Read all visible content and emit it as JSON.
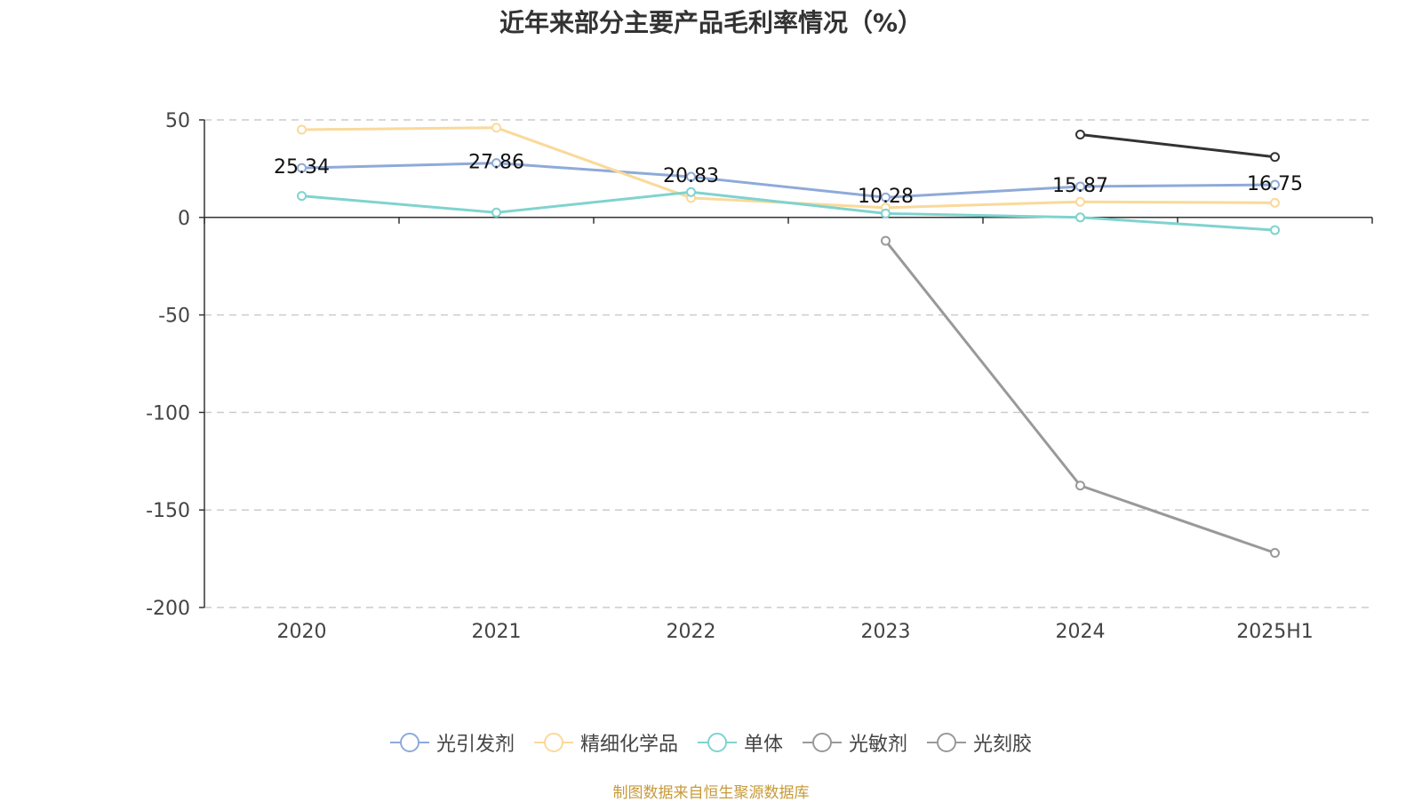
{
  "title": "近年来部分主要产品毛利率情况（%）",
  "source_text": "制图数据来自恒生聚源数据库",
  "chart_data": {
    "type": "line",
    "title": "近年来部分主要产品毛利率情况（%）",
    "categories": [
      "2020",
      "2021",
      "2022",
      "2023",
      "2024",
      "2025H1"
    ],
    "ylim": [
      -200,
      50
    ],
    "yticks": [
      50,
      0,
      -50,
      -100,
      -150,
      -200
    ],
    "grid": true,
    "legend_position": "bottom",
    "series": [
      {
        "name": "光引发剂",
        "color": "#8eaad9",
        "values": [
          25.34,
          27.86,
          20.83,
          10.28,
          15.87,
          16.75
        ],
        "show_labels": true
      },
      {
        "name": "精细化学品",
        "color": "#fad99a",
        "values": [
          45,
          46,
          10,
          5,
          8,
          7.5
        ],
        "show_labels": false
      },
      {
        "name": "单体",
        "color": "#7fd3cf",
        "values": [
          11,
          2.5,
          13,
          2,
          0,
          -6.5
        ],
        "show_labels": false
      },
      {
        "name": "光敏剂",
        "color": "#999999",
        "values": [
          null,
          null,
          null,
          -12,
          -137.5,
          -172
        ],
        "show_labels": false
      },
      {
        "name": "光刻胶",
        "color": "#333333",
        "values": [
          null,
          null,
          null,
          null,
          42.5,
          31
        ],
        "show_labels": false
      }
    ]
  },
  "legend": [
    {
      "label": "光引发剂",
      "color": "#8eaad9"
    },
    {
      "label": "精细化学品",
      "color": "#fad99a"
    },
    {
      "label": "单体",
      "color": "#7fd3cf"
    },
    {
      "label": "光敏剂",
      "color": "#999999"
    },
    {
      "label": "光刻胶",
      "color": "#999999"
    }
  ]
}
